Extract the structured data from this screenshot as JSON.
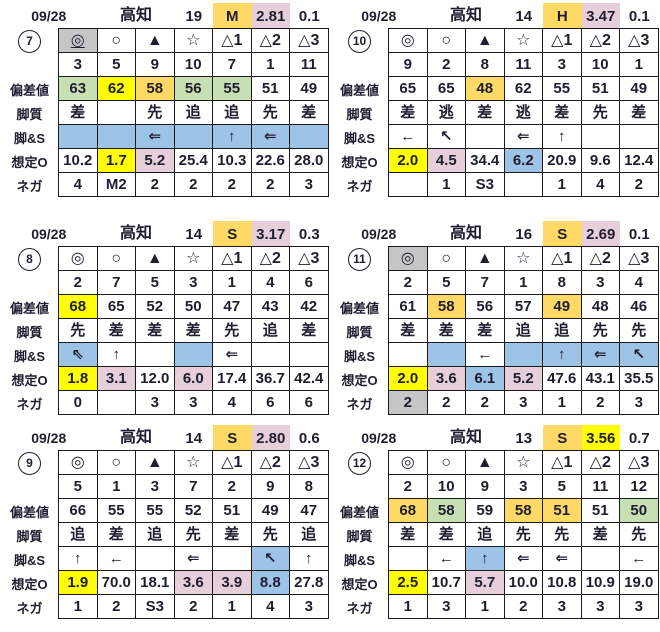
{
  "colors": {
    "orange": "#FFD966",
    "yellow": "#FFFF00",
    "green": "#C6E0B4",
    "pink": "#E7CEDB",
    "blue": "#9DC3E6",
    "gray": "#C6C6C6"
  },
  "row_labels": {
    "hensachi": "偏差値",
    "kyakushitsu": "脚質",
    "kyaku_s": "脚&S",
    "souteio": "想定O",
    "nega": "ネガ"
  },
  "panels": [
    {
      "num": "7",
      "header": {
        "date": "09/28",
        "venue": "高知",
        "count": "19",
        "cls": {
          "t": "M",
          "bg": "orange"
        },
        "v1": {
          "t": "2.81",
          "bg": "pink"
        },
        "v2": "0.1"
      },
      "rows": {
        "symbols": [
          {
            "t": "◎",
            "bg": "gray",
            "u": true
          },
          {
            "t": "○"
          },
          {
            "t": "▲"
          },
          {
            "t": "☆"
          },
          {
            "t": "△1"
          },
          {
            "t": "△2"
          },
          {
            "t": "△3"
          }
        ],
        "numbers": [
          {
            "t": "3"
          },
          {
            "t": "5"
          },
          {
            "t": "9"
          },
          {
            "t": "10"
          },
          {
            "t": "7"
          },
          {
            "t": "1"
          },
          {
            "t": "11"
          }
        ],
        "hensachi": [
          {
            "t": "63",
            "bg": "green"
          },
          {
            "t": "62",
            "bg": "yellow"
          },
          {
            "t": "58",
            "bg": "orange"
          },
          {
            "t": "56",
            "bg": "green"
          },
          {
            "t": "55",
            "bg": "green"
          },
          {
            "t": "51"
          },
          {
            "t": "49"
          }
        ],
        "kyakushitsu": [
          {
            "t": "差"
          },
          {
            "t": ""
          },
          {
            "t": "先"
          },
          {
            "t": "追"
          },
          {
            "t": "追"
          },
          {
            "t": "先"
          },
          {
            "t": "差"
          }
        ],
        "kyaku_s": [
          {
            "t": "",
            "bg": "blue"
          },
          {
            "t": "",
            "bg": "blue"
          },
          {
            "t": "⇐",
            "bg": "blue"
          },
          {
            "t": "",
            "bg": "blue"
          },
          {
            "t": "↑",
            "bg": "blue"
          },
          {
            "t": "⇐",
            "bg": "blue"
          },
          {
            "t": "",
            "bg": "blue"
          }
        ],
        "souteio": [
          {
            "t": "10.2"
          },
          {
            "t": "1.7",
            "bg": "yellow"
          },
          {
            "t": "5.2",
            "bg": "pink"
          },
          {
            "t": "25.4"
          },
          {
            "t": "10.3"
          },
          {
            "t": "22.6"
          },
          {
            "t": "28.0"
          }
        ],
        "nega": [
          {
            "t": "4"
          },
          {
            "t": "M2"
          },
          {
            "t": "2"
          },
          {
            "t": "2"
          },
          {
            "t": "2"
          },
          {
            "t": "2"
          },
          {
            "t": "3"
          }
        ]
      }
    },
    {
      "num": "10",
      "header": {
        "date": "09/28",
        "venue": "高知",
        "count": "14",
        "cls": {
          "t": "H",
          "bg": "orange"
        },
        "v1": {
          "t": "3.47",
          "bg": "pink"
        },
        "v2": "0.1"
      },
      "rows": {
        "symbols": [
          {
            "t": "◎"
          },
          {
            "t": "○"
          },
          {
            "t": "▲"
          },
          {
            "t": "☆"
          },
          {
            "t": "△1"
          },
          {
            "t": "△2"
          },
          {
            "t": "△3"
          }
        ],
        "numbers": [
          {
            "t": "9"
          },
          {
            "t": "2"
          },
          {
            "t": "8"
          },
          {
            "t": "11"
          },
          {
            "t": "3"
          },
          {
            "t": "10"
          },
          {
            "t": "1"
          }
        ],
        "hensachi": [
          {
            "t": "65"
          },
          {
            "t": "65"
          },
          {
            "t": "48",
            "bg": "orange"
          },
          {
            "t": "62"
          },
          {
            "t": "55"
          },
          {
            "t": "51"
          },
          {
            "t": "49"
          }
        ],
        "kyakushitsu": [
          {
            "t": "差"
          },
          {
            "t": "逃"
          },
          {
            "t": "差"
          },
          {
            "t": "逃"
          },
          {
            "t": "差"
          },
          {
            "t": "先"
          },
          {
            "t": "差"
          }
        ],
        "kyaku_s": [
          {
            "t": "←"
          },
          {
            "t": "↖"
          },
          {
            "t": ""
          },
          {
            "t": "⇐"
          },
          {
            "t": "↑"
          },
          {
            "t": ""
          },
          {
            "t": ""
          }
        ],
        "souteio": [
          {
            "t": "2.0",
            "bg": "yellow"
          },
          {
            "t": "4.5",
            "bg": "pink"
          },
          {
            "t": "34.4"
          },
          {
            "t": "6.2",
            "bg": "blue"
          },
          {
            "t": "20.9"
          },
          {
            "t": "9.6"
          },
          {
            "t": "12.4"
          }
        ],
        "nega": [
          {
            "t": ""
          },
          {
            "t": "1"
          },
          {
            "t": "S3"
          },
          {
            "t": ""
          },
          {
            "t": "1"
          },
          {
            "t": "4"
          },
          {
            "t": "2"
          }
        ]
      }
    },
    {
      "num": "8",
      "header": {
        "date": "09/28",
        "venue": "高知",
        "count": "14",
        "cls": {
          "t": "S",
          "bg": "orange"
        },
        "v1": {
          "t": "3.17",
          "bg": "pink"
        },
        "v2": "0.3"
      },
      "rows": {
        "symbols": [
          {
            "t": "◎"
          },
          {
            "t": "○"
          },
          {
            "t": "▲"
          },
          {
            "t": "☆"
          },
          {
            "t": "△1"
          },
          {
            "t": "△2"
          },
          {
            "t": "△3"
          }
        ],
        "numbers": [
          {
            "t": "2"
          },
          {
            "t": "7"
          },
          {
            "t": "5"
          },
          {
            "t": "3"
          },
          {
            "t": "1"
          },
          {
            "t": "4"
          },
          {
            "t": "6"
          }
        ],
        "hensachi": [
          {
            "t": "68",
            "bg": "yellow"
          },
          {
            "t": "65"
          },
          {
            "t": "52"
          },
          {
            "t": "50"
          },
          {
            "t": "47"
          },
          {
            "t": "43"
          },
          {
            "t": "42"
          }
        ],
        "kyakushitsu": [
          {
            "t": "先"
          },
          {
            "t": "差"
          },
          {
            "t": "差"
          },
          {
            "t": "差"
          },
          {
            "t": "先"
          },
          {
            "t": "追"
          },
          {
            "t": "差"
          }
        ],
        "kyaku_s": [
          {
            "t": "⇖",
            "bg": "blue"
          },
          {
            "t": "↑"
          },
          {
            "t": ""
          },
          {
            "t": "",
            "bg": "blue"
          },
          {
            "t": "⇐"
          },
          {
            "t": ""
          },
          {
            "t": ""
          }
        ],
        "souteio": [
          {
            "t": "1.8",
            "bg": "yellow"
          },
          {
            "t": "3.1",
            "bg": "pink"
          },
          {
            "t": "12.0"
          },
          {
            "t": "6.0",
            "bg": "pink"
          },
          {
            "t": "17.4"
          },
          {
            "t": "36.7"
          },
          {
            "t": "42.4"
          }
        ],
        "nega": [
          {
            "t": "0"
          },
          {
            "t": ""
          },
          {
            "t": "3"
          },
          {
            "t": "3"
          },
          {
            "t": "4"
          },
          {
            "t": "6"
          },
          {
            "t": "6"
          }
        ]
      }
    },
    {
      "num": "11",
      "header": {
        "date": "09/28",
        "venue": "高知",
        "count": "16",
        "cls": {
          "t": "S",
          "bg": "orange"
        },
        "v1": {
          "t": "2.69",
          "bg": "pink"
        },
        "v2": "0.1"
      },
      "rows": {
        "symbols": [
          {
            "t": "◎",
            "bg": "gray"
          },
          {
            "t": "○"
          },
          {
            "t": "▲"
          },
          {
            "t": "☆"
          },
          {
            "t": "△1"
          },
          {
            "t": "△2"
          },
          {
            "t": "△3"
          }
        ],
        "numbers": [
          {
            "t": "2"
          },
          {
            "t": "5"
          },
          {
            "t": "7"
          },
          {
            "t": "1"
          },
          {
            "t": "8"
          },
          {
            "t": "3"
          },
          {
            "t": "4"
          }
        ],
        "hensachi": [
          {
            "t": "61"
          },
          {
            "t": "58",
            "bg": "orange"
          },
          {
            "t": "56"
          },
          {
            "t": "57"
          },
          {
            "t": "49",
            "bg": "orange"
          },
          {
            "t": "48"
          },
          {
            "t": "46"
          }
        ],
        "kyakushitsu": [
          {
            "t": "差"
          },
          {
            "t": "差"
          },
          {
            "t": "差"
          },
          {
            "t": "追"
          },
          {
            "t": "追"
          },
          {
            "t": "先"
          },
          {
            "t": "先"
          }
        ],
        "kyaku_s": [
          {
            "t": ""
          },
          {
            "t": "",
            "bg": "blue"
          },
          {
            "t": "←"
          },
          {
            "t": "",
            "bg": "blue"
          },
          {
            "t": "↑",
            "bg": "blue"
          },
          {
            "t": "⇐",
            "bg": "blue"
          },
          {
            "t": "↖",
            "bg": "blue"
          }
        ],
        "souteio": [
          {
            "t": "2.0",
            "bg": "yellow"
          },
          {
            "t": "3.6",
            "bg": "pink"
          },
          {
            "t": "6.1",
            "bg": "blue"
          },
          {
            "t": "5.2",
            "bg": "pink"
          },
          {
            "t": "47.6"
          },
          {
            "t": "43.1"
          },
          {
            "t": "35.5"
          }
        ],
        "nega": [
          {
            "t": "2",
            "bg": "gray"
          },
          {
            "t": "2"
          },
          {
            "t": "2"
          },
          {
            "t": "3"
          },
          {
            "t": "1"
          },
          {
            "t": "2"
          },
          {
            "t": "3"
          }
        ]
      }
    },
    {
      "num": "9",
      "header": {
        "date": "09/28",
        "venue": "高知",
        "count": "14",
        "cls": {
          "t": "S",
          "bg": "orange"
        },
        "v1": {
          "t": "2.80",
          "bg": "pink"
        },
        "v2": "0.6"
      },
      "rows": {
        "symbols": [
          {
            "t": "◎"
          },
          {
            "t": "○"
          },
          {
            "t": "▲"
          },
          {
            "t": "☆"
          },
          {
            "t": "△1"
          },
          {
            "t": "△2"
          },
          {
            "t": "△3"
          }
        ],
        "numbers": [
          {
            "t": "5"
          },
          {
            "t": "1"
          },
          {
            "t": "3"
          },
          {
            "t": "7"
          },
          {
            "t": "2"
          },
          {
            "t": "9"
          },
          {
            "t": "8"
          }
        ],
        "hensachi": [
          {
            "t": "66"
          },
          {
            "t": "55"
          },
          {
            "t": "55"
          },
          {
            "t": "52"
          },
          {
            "t": "51"
          },
          {
            "t": "49"
          },
          {
            "t": "47"
          }
        ],
        "kyakushitsu": [
          {
            "t": "追"
          },
          {
            "t": "差"
          },
          {
            "t": "追"
          },
          {
            "t": "先"
          },
          {
            "t": "差"
          },
          {
            "t": "先"
          },
          {
            "t": "追"
          }
        ],
        "kyaku_s": [
          {
            "t": "↑"
          },
          {
            "t": "←"
          },
          {
            "t": ""
          },
          {
            "t": "⇐"
          },
          {
            "t": ""
          },
          {
            "t": "↖",
            "bg": "blue"
          },
          {
            "t": "↑"
          }
        ],
        "souteio": [
          {
            "t": "1.9",
            "bg": "yellow"
          },
          {
            "t": "70.0"
          },
          {
            "t": "18.1"
          },
          {
            "t": "3.6",
            "bg": "pink"
          },
          {
            "t": "3.9",
            "bg": "pink"
          },
          {
            "t": "8.8",
            "bg": "blue"
          },
          {
            "t": "27.8"
          }
        ],
        "nega": [
          {
            "t": "1"
          },
          {
            "t": "2"
          },
          {
            "t": "S3"
          },
          {
            "t": "2"
          },
          {
            "t": "1"
          },
          {
            "t": "4"
          },
          {
            "t": "3"
          }
        ]
      }
    },
    {
      "num": "12",
      "header": {
        "date": "09/28",
        "venue": "高知",
        "count": "13",
        "cls": {
          "t": "S",
          "bg": "orange"
        },
        "v1": {
          "t": "3.56",
          "bg": "yellow"
        },
        "v2": "0.7"
      },
      "rows": {
        "symbols": [
          {
            "t": "◎"
          },
          {
            "t": "○"
          },
          {
            "t": "▲"
          },
          {
            "t": "☆"
          },
          {
            "t": "△1"
          },
          {
            "t": "△2"
          },
          {
            "t": "△3"
          }
        ],
        "numbers": [
          {
            "t": "2"
          },
          {
            "t": "10"
          },
          {
            "t": "9"
          },
          {
            "t": "3"
          },
          {
            "t": "5"
          },
          {
            "t": "11"
          },
          {
            "t": "12"
          }
        ],
        "hensachi": [
          {
            "t": "68",
            "bg": "orange"
          },
          {
            "t": "58",
            "bg": "green"
          },
          {
            "t": "59"
          },
          {
            "t": "58",
            "bg": "orange"
          },
          {
            "t": "51",
            "bg": "orange"
          },
          {
            "t": "51"
          },
          {
            "t": "50",
            "bg": "green"
          }
        ],
        "kyakushitsu": [
          {
            "t": "差"
          },
          {
            "t": "差"
          },
          {
            "t": "追"
          },
          {
            "t": "先"
          },
          {
            "t": "先"
          },
          {
            "t": "差"
          },
          {
            "t": "先"
          }
        ],
        "kyaku_s": [
          {
            "t": ""
          },
          {
            "t": "←"
          },
          {
            "t": "↑",
            "bg": "blue"
          },
          {
            "t": "⇐"
          },
          {
            "t": "⇐"
          },
          {
            "t": ""
          },
          {
            "t": "←"
          }
        ],
        "souteio": [
          {
            "t": "2.5",
            "bg": "yellow"
          },
          {
            "t": "10.7"
          },
          {
            "t": "5.7",
            "bg": "pink"
          },
          {
            "t": "10.0"
          },
          {
            "t": "10.8"
          },
          {
            "t": "10.9"
          },
          {
            "t": "19.0"
          }
        ],
        "nega": [
          {
            "t": "1"
          },
          {
            "t": "3"
          },
          {
            "t": "1"
          },
          {
            "t": "2"
          },
          {
            "t": "3"
          },
          {
            "t": "3"
          },
          {
            "t": "3"
          }
        ]
      }
    }
  ]
}
